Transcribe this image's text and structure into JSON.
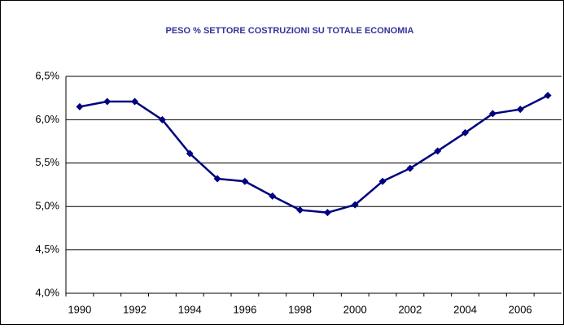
{
  "chart_data": {
    "type": "line",
    "title": "PESO % SETTORE COSTRUZIONI SU TOTALE ECONOMIA",
    "categories": [
      "1990",
      null,
      "1992",
      null,
      "1994",
      null,
      "1996",
      null,
      "1998",
      null,
      "2000",
      null,
      "2002",
      null,
      "2004",
      null,
      "2006",
      null
    ],
    "series": [
      {
        "name": "Peso %",
        "color": "#000080",
        "values": [
          6.15,
          6.21,
          6.21,
          6.0,
          5.61,
          5.32,
          5.29,
          5.12,
          4.96,
          4.93,
          5.02,
          5.29,
          5.44,
          5.64,
          5.85,
          6.07,
          6.12,
          6.28
        ]
      }
    ],
    "ylim": [
      4.0,
      6.5
    ],
    "yticks": [
      {
        "value": 4.0,
        "label": "4,0%"
      },
      {
        "value": 4.5,
        "label": "4,5%"
      },
      {
        "value": 5.0,
        "label": "5,0%"
      },
      {
        "value": 5.5,
        "label": "5,5%"
      },
      {
        "value": 6.0,
        "label": "6,0%"
      },
      {
        "value": 6.5,
        "label": "6,5%"
      }
    ],
    "grid": true
  }
}
